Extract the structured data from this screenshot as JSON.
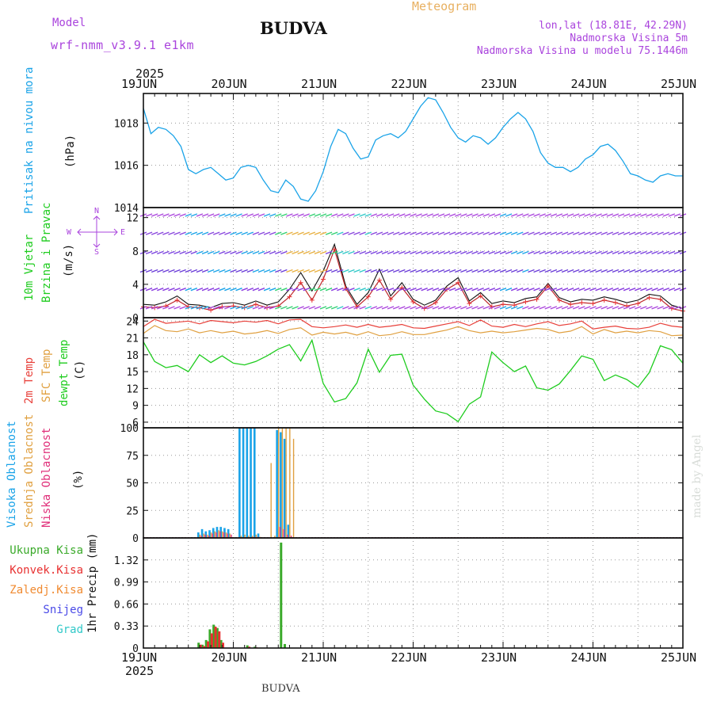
{
  "header": {
    "model_label": "Model",
    "model_name": "wrf-nmm_v3.9.1 e1km",
    "station": "BUDVA",
    "meteogram_label": "Meteogram",
    "lonlat": "lon,lat (18.81E, 42.29N)",
    "altitude": "Nadmorska Visina 5m",
    "model_altitude": "Nadmorska Visina u modelu 75.1446m",
    "footer_station": "BUDVA",
    "credit": "made by Angel"
  },
  "colors": {
    "pressure": "#1aa3e8",
    "temp2m": "#e8403a",
    "sfc_temp": "#e0a040",
    "dewpt": "#1ecc1e",
    "violet": "#aa44dd",
    "orange_title": "#e8b060",
    "high_cloud": "#1aa3e8",
    "mid_cloud": "#e0a040",
    "low_cloud": "#e0307a",
    "total_rain": "#3aaa2a",
    "conv_rain": "#e83030",
    "strat_rain": "#f08a30",
    "snow": "#4a4ae8",
    "hail": "#30c8c8"
  },
  "time_axis": {
    "year": "2025",
    "dates": [
      "19JUN",
      "20JUN",
      "21JUN",
      "22JUN",
      "23JUN",
      "24JUN",
      "25JUN"
    ]
  },
  "chart_data": [
    {
      "id": "pressure",
      "type": "line",
      "title_lines": [
        "Pritisak na nivou mora"
      ],
      "unit": "(hPa)",
      "ylim": [
        1014,
        1019.4
      ],
      "yticks": [
        1014,
        1016,
        1018
      ],
      "x_hours": [
        0,
        2,
        4,
        6,
        8,
        10,
        12,
        14,
        16,
        18,
        20,
        22,
        24,
        26,
        28,
        30,
        32,
        34,
        36,
        38,
        40,
        42,
        44,
        46,
        48,
        50,
        52,
        54,
        56,
        58,
        60,
        62,
        64,
        66,
        68,
        70,
        72,
        74,
        76,
        78,
        80,
        82,
        84,
        86,
        88,
        90,
        92,
        94,
        96,
        98,
        100,
        102,
        104,
        106,
        108,
        110,
        112,
        114,
        116,
        118,
        120,
        122,
        124,
        126,
        128,
        130,
        132,
        134,
        136,
        138,
        140,
        142,
        144
      ],
      "series": [
        {
          "key": "pressure",
          "values": [
            1018.7,
            1017.5,
            1017.8,
            1017.7,
            1017.4,
            1016.9,
            1015.8,
            1015.6,
            1015.8,
            1015.9,
            1015.6,
            1015.3,
            1015.4,
            1015.9,
            1016.0,
            1015.9,
            1015.3,
            1014.8,
            1014.7,
            1015.3,
            1015.0,
            1014.4,
            1014.3,
            1014.8,
            1015.7,
            1016.9,
            1017.7,
            1017.5,
            1016.8,
            1016.3,
            1016.4,
            1017.2,
            1017.4,
            1017.5,
            1017.3,
            1017.6,
            1018.2,
            1018.8,
            1019.2,
            1019.1,
            1018.5,
            1017.8,
            1017.3,
            1017.1,
            1017.4,
            1017.3,
            1017.0,
            1017.3,
            1017.8,
            1018.2,
            1018.5,
            1018.2,
            1017.6,
            1016.6,
            1016.1,
            1015.9,
            1015.9,
            1015.7,
            1015.9,
            1016.3,
            1016.5,
            1016.9,
            1017.0,
            1016.7,
            1016.2,
            1015.6,
            1015.5,
            1015.3,
            1015.2,
            1015.5,
            1015.6,
            1015.5,
            1015.5
          ]
        }
      ]
    },
    {
      "id": "wind",
      "type": "line",
      "title_lines": [
        "10m Vjetar",
        "Brzina i Pravac"
      ],
      "unit": "(m/s)",
      "compass": {
        "n": "N",
        "s": "S",
        "e": "E",
        "w": "W"
      },
      "ylim": [
        0,
        13.2
      ],
      "yticks": [
        0,
        4,
        8,
        12
      ],
      "x_hours": [
        0,
        3,
        6,
        9,
        12,
        15,
        18,
        21,
        24,
        27,
        30,
        33,
        36,
        39,
        42,
        45,
        48,
        51,
        54,
        57,
        60,
        63,
        66,
        69,
        72,
        75,
        78,
        81,
        84,
        87,
        90,
        93,
        96,
        99,
        102,
        105,
        108,
        111,
        114,
        117,
        120,
        123,
        126,
        129,
        132,
        135,
        138,
        141,
        144
      ],
      "series": [
        {
          "key": "wind10m",
          "values": [
            1.3,
            1.2,
            1.4,
            2.1,
            1.3,
            1.2,
            0.9,
            1.3,
            1.4,
            1.2,
            1.6,
            1.2,
            1.4,
            2.5,
            4.2,
            2.1,
            4.6,
            8.2,
            3.5,
            1.3,
            2.5,
            4.5,
            2.2,
            3.6,
            1.9,
            1.1,
            1.8,
            3.4,
            4.2,
            1.7,
            2.6,
            1.3,
            1.6,
            1.5,
            1.9,
            2.2,
            3.8,
            2.1,
            1.6,
            1.8,
            1.7,
            2.1,
            1.8,
            1.4,
            1.7,
            2.4,
            2.2,
            1.1,
            0.8
          ]
        },
        {
          "key": "gust",
          "values": [
            1.6,
            1.5,
            1.9,
            2.6,
            1.6,
            1.5,
            1.2,
            1.7,
            1.8,
            1.5,
            2.0,
            1.5,
            1.9,
            3.4,
            5.4,
            3.2,
            5.6,
            8.8,
            3.8,
            1.6,
            3.0,
            5.8,
            2.6,
            4.2,
            2.2,
            1.5,
            2.1,
            3.8,
            4.8,
            2.0,
            3.0,
            1.7,
            2.0,
            1.8,
            2.3,
            2.5,
            4.1,
            2.4,
            1.9,
            2.2,
            2.1,
            2.5,
            2.2,
            1.8,
            2.1,
            2.8,
            2.6,
            1.5,
            1.1
          ]
        }
      ]
    },
    {
      "id": "temperature",
      "type": "line",
      "title_lines": [
        "2m Temp",
        "SFC Temp",
        "dewpt Temp"
      ],
      "unit": "(C)",
      "ylim": [
        5,
        24.6
      ],
      "yticks": [
        6,
        9,
        12,
        15,
        18,
        21,
        24
      ],
      "x_hours": [
        0,
        3,
        6,
        9,
        12,
        15,
        18,
        21,
        24,
        27,
        30,
        33,
        36,
        39,
        42,
        45,
        48,
        51,
        54,
        57,
        60,
        63,
        66,
        69,
        72,
        75,
        78,
        81,
        84,
        87,
        90,
        93,
        96,
        99,
        102,
        105,
        108,
        111,
        114,
        117,
        120,
        123,
        126,
        129,
        132,
        135,
        138,
        141,
        144
      ],
      "series": [
        {
          "key": "temp2m",
          "values": [
            23.0,
            24.3,
            23.6,
            23.8,
            24.0,
            23.5,
            24.1,
            23.9,
            23.7,
            24.0,
            23.8,
            24.1,
            23.5,
            24.2,
            24.3,
            23.0,
            22.8,
            23.0,
            23.3,
            22.9,
            23.4,
            22.9,
            23.1,
            23.4,
            22.8,
            22.7,
            23.1,
            23.5,
            23.9,
            23.2,
            24.2,
            23.1,
            22.9,
            23.4,
            23.0,
            23.5,
            23.9,
            23.2,
            23.5,
            24.0,
            22.6,
            22.9,
            23.1,
            22.7,
            22.6,
            22.9,
            23.6,
            23.1,
            22.9
          ]
        },
        {
          "key": "sfc_temp",
          "values": [
            21.8,
            23.2,
            22.3,
            22.1,
            22.6,
            21.9,
            22.3,
            21.9,
            22.2,
            21.7,
            21.9,
            22.3,
            21.8,
            22.5,
            22.8,
            21.5,
            22.0,
            21.7,
            22.0,
            21.5,
            22.1,
            21.4,
            21.6,
            22.1,
            21.6,
            21.6,
            22.0,
            22.4,
            23.0,
            22.3,
            21.9,
            22.2,
            21.9,
            22.1,
            22.4,
            22.7,
            22.5,
            21.9,
            22.2,
            23.0,
            21.7,
            22.5,
            21.9,
            22.2,
            21.9,
            22.3,
            22.1,
            21.4,
            21.5
          ]
        },
        {
          "key": "dewpt",
          "values": [
            20.3,
            16.8,
            15.7,
            16.1,
            15.0,
            18.0,
            16.6,
            17.8,
            16.5,
            16.2,
            16.8,
            17.8,
            19.0,
            19.8,
            16.9,
            20.6,
            12.9,
            9.6,
            10.2,
            13.0,
            19.0,
            14.9,
            17.9,
            18.1,
            12.6,
            10.1,
            8.0,
            7.5,
            6.1,
            9.2,
            10.5,
            18.5,
            16.6,
            15.0,
            16.0,
            12.1,
            11.7,
            12.8,
            15.2,
            17.8,
            17.2,
            13.4,
            14.4,
            13.6,
            12.2,
            14.8,
            19.6,
            18.9,
            16.5
          ]
        }
      ]
    },
    {
      "id": "clouds",
      "type": "bar",
      "title_lines": [
        "Visoka Oblacnost",
        "Srednja Oblacnost",
        "Niska Oblacnost"
      ],
      "unit": "(%)",
      "ylim": [
        0,
        100
      ],
      "yticks": [
        0,
        25,
        50,
        75,
        100
      ],
      "x_hours": [
        15,
        16,
        17,
        18,
        19,
        20,
        21,
        22,
        23,
        26,
        27,
        28,
        29,
        30,
        31,
        34,
        35,
        36,
        37,
        38,
        39,
        40,
        41
      ],
      "series": [
        {
          "key": "high_cloud",
          "values": [
            5,
            8,
            6,
            7,
            9,
            10,
            10,
            9,
            8,
            100,
            100,
            100,
            100,
            100,
            4,
            0,
            0,
            98,
            96,
            90,
            12,
            0,
            0
          ]
        },
        {
          "key": "mid_cloud",
          "values": [
            3,
            4,
            3,
            5,
            6,
            7,
            6,
            5,
            4,
            2,
            3,
            2,
            2,
            3,
            1,
            68,
            2,
            100,
            100,
            100,
            100,
            90,
            0
          ]
        },
        {
          "key": "low_cloud",
          "values": [
            2,
            3,
            2,
            4,
            5,
            6,
            5,
            4,
            3,
            0,
            0,
            0,
            1,
            1,
            0,
            0,
            0,
            10,
            8,
            3,
            2,
            0,
            0
          ]
        }
      ]
    },
    {
      "id": "precip",
      "type": "bar",
      "title_lines": [
        "Ukupna Kisa",
        "Konvek.Kisa",
        "Zaledj.Kisa",
        "Snijeg",
        "Grad"
      ],
      "unit": "1hr Precip (mm)",
      "ylim": [
        0,
        1.65
      ],
      "yticks": [
        0,
        0.33,
        0.66,
        0.99,
        1.32
      ],
      "ytick_labels": [
        "0",
        "0.33",
        "0.66",
        "0.99",
        "1.32"
      ],
      "x_hours": [
        15,
        16,
        17,
        18,
        19,
        20,
        21,
        28,
        30,
        37,
        38
      ],
      "series": [
        {
          "key": "total_rain",
          "values": [
            0.08,
            0.05,
            0.12,
            0.28,
            0.35,
            0.3,
            0.12,
            0.04,
            0.02,
            1.58,
            0.06
          ]
        },
        {
          "key": "conv_rain",
          "values": [
            0.05,
            0.03,
            0.1,
            0.22,
            0.32,
            0.25,
            0.08,
            0.02,
            0.01,
            0.0,
            0.0
          ]
        }
      ]
    }
  ]
}
